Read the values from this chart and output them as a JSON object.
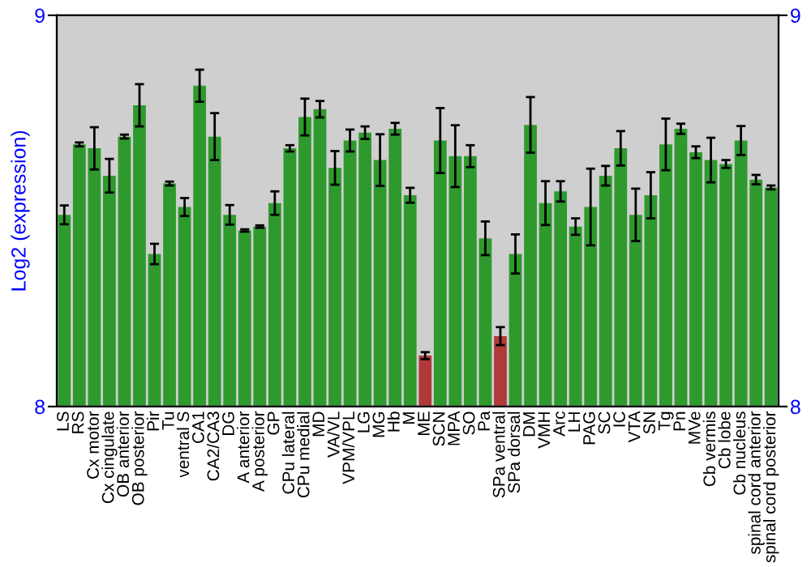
{
  "chart_data": {
    "type": "bar",
    "ylabel": "Log2 (expression)",
    "categories": [
      "LS",
      "RS",
      "Cx motor",
      "Cx cingulate",
      "OB anterior",
      "OB posterior",
      "Pir",
      "Tu",
      "ventral S",
      "CA1",
      "CA2/CA3",
      "DG",
      "A anterior",
      "A posterior",
      "GP",
      "CPu lateral",
      "CPu medial",
      "MD",
      "VA/VL",
      "VPM/VPL",
      "LG",
      "MG",
      "Hb",
      "M",
      "ME",
      "SCN",
      "MPA",
      "SO",
      "Pa",
      "SPa ventral",
      "SPa dorsal",
      "DM",
      "VMH",
      "Arc",
      "LH",
      "PAG",
      "SC",
      "IC",
      "VTA",
      "SN",
      "Tg",
      "Pn",
      "MVe",
      "Cb vermis",
      "Cb lobe",
      "Cb nucleus",
      "spinal cord anterior",
      "spinal cord posterior"
    ],
    "values": [
      8.49,
      8.67,
      8.66,
      8.59,
      8.69,
      8.77,
      8.39,
      8.57,
      8.51,
      8.82,
      8.69,
      8.49,
      8.45,
      8.46,
      8.52,
      8.66,
      8.74,
      8.76,
      8.61,
      8.68,
      8.7,
      8.63,
      8.71,
      8.54,
      8.13,
      8.68,
      8.64,
      8.64,
      8.43,
      8.18,
      8.39,
      8.72,
      8.52,
      8.55,
      8.46,
      8.51,
      8.59,
      8.66,
      8.49,
      8.54,
      8.67,
      8.71,
      8.65,
      8.63,
      8.62,
      8.68,
      8.58,
      8.56
    ],
    "errors": [
      0.024,
      0.005,
      0.054,
      0.043,
      0.005,
      0.054,
      0.026,
      0.005,
      0.023,
      0.041,
      0.06,
      0.025,
      0.003,
      0.003,
      0.03,
      0.008,
      0.047,
      0.021,
      0.043,
      0.028,
      0.016,
      0.066,
      0.015,
      0.019,
      0.009,
      0.083,
      0.079,
      0.028,
      0.043,
      0.023,
      0.05,
      0.071,
      0.056,
      0.026,
      0.021,
      0.098,
      0.025,
      0.044,
      0.067,
      0.059,
      0.066,
      0.013,
      0.015,
      0.057,
      0.01,
      0.037,
      0.012,
      0.005
    ],
    "colors": [
      "#2e9a2e",
      "#2e9a2e",
      "#2e9a2e",
      "#2e9a2e",
      "#2e9a2e",
      "#2e9a2e",
      "#2e9a2e",
      "#2e9a2e",
      "#2e9a2e",
      "#2e9a2e",
      "#2e9a2e",
      "#2e9a2e",
      "#2e9a2e",
      "#2e9a2e",
      "#2e9a2e",
      "#2e9a2e",
      "#2e9a2e",
      "#2e9a2e",
      "#2e9a2e",
      "#2e9a2e",
      "#2e9a2e",
      "#2e9a2e",
      "#2e9a2e",
      "#2e9a2e",
      "#b03a3a",
      "#2e9a2e",
      "#2e9a2e",
      "#2e9a2e",
      "#2e9a2e",
      "#b03a3a",
      "#2e9a2e",
      "#2e9a2e",
      "#2e9a2e",
      "#2e9a2e",
      "#2e9a2e",
      "#2e9a2e",
      "#2e9a2e",
      "#2e9a2e",
      "#2e9a2e",
      "#2e9a2e",
      "#2e9a2e",
      "#2e9a2e",
      "#2e9a2e",
      "#2e9a2e",
      "#2e9a2e",
      "#2e9a2e",
      "#2e9a2e",
      "#2e9a2e"
    ],
    "ylim": [
      8,
      9
    ],
    "yticks": [
      8,
      9
    ],
    "y2lim": [
      8,
      9
    ],
    "y2ticks": [
      8,
      9
    ],
    "grid": false
  }
}
